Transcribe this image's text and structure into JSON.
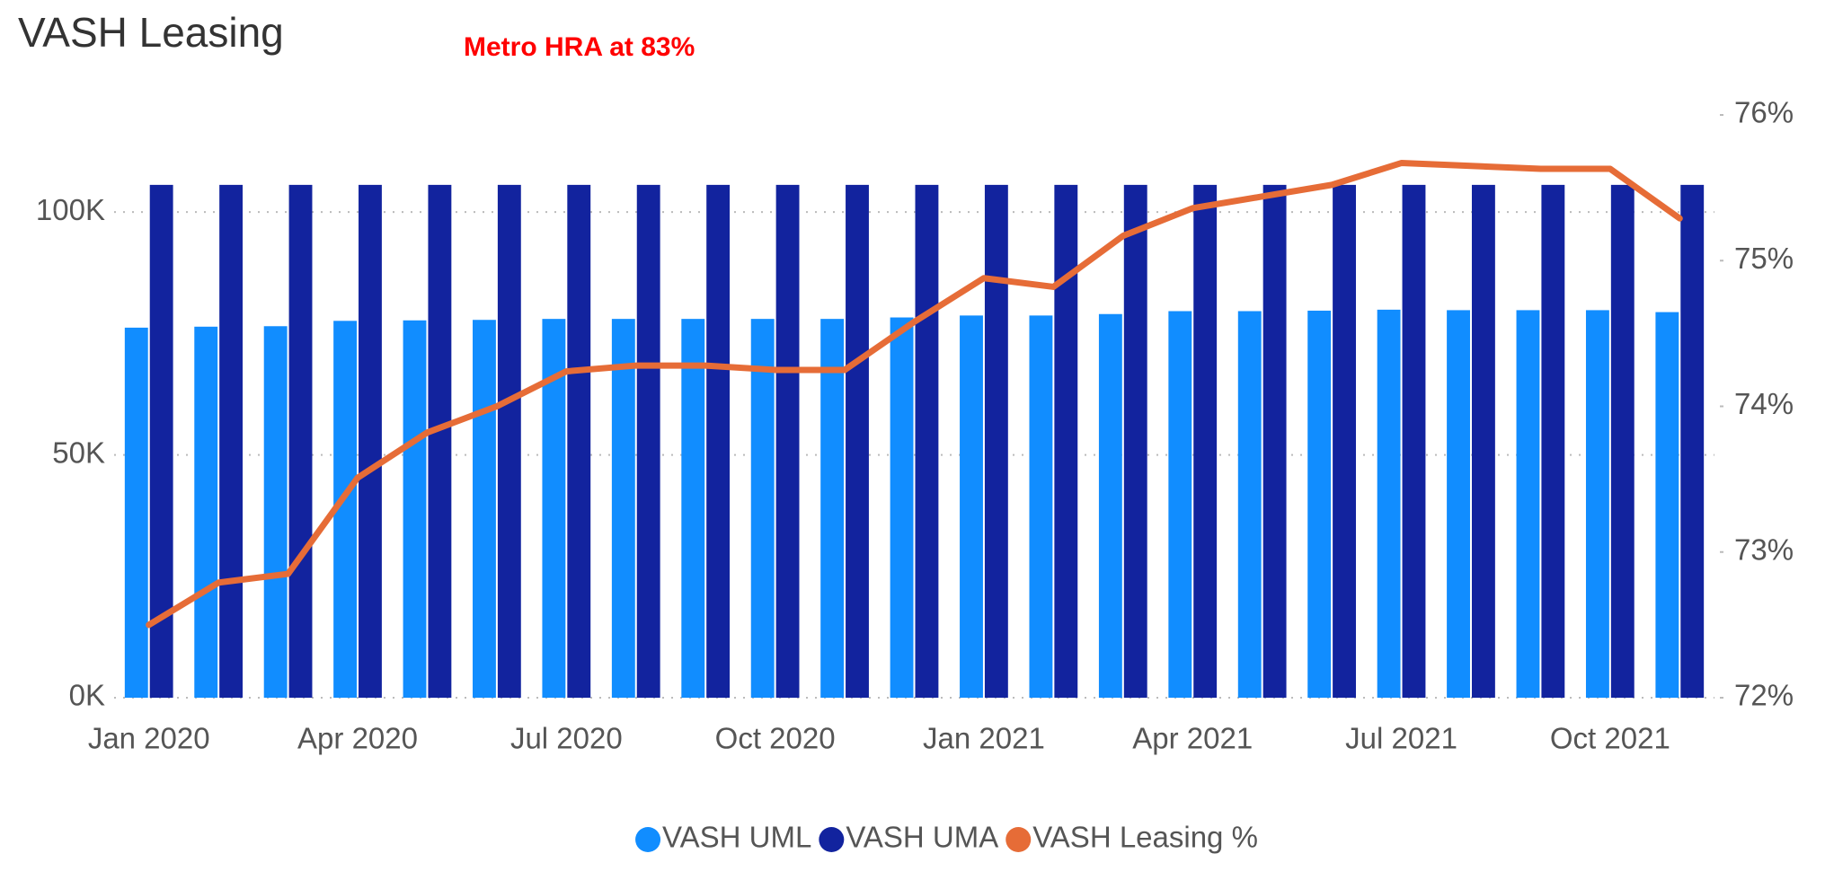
{
  "chart_data": {
    "type": "bar",
    "title": "VASH Leasing",
    "annotation": "Metro HRA at 83%",
    "categories": [
      "Jan 2020",
      null,
      null,
      "Apr 2020",
      null,
      null,
      "Jul 2020",
      null,
      null,
      "Oct 2020",
      null,
      null,
      "Jan 2021",
      null,
      null,
      "Apr 2021",
      null,
      null,
      "Jul 2021",
      null,
      null,
      "Oct 2021",
      null
    ],
    "series": [
      {
        "name": "VASH UML",
        "color": "#118dff",
        "type": "bar",
        "values": [
          76200,
          76400,
          76500,
          77600,
          77700,
          77800,
          78000,
          78000,
          78000,
          78000,
          78000,
          78300,
          78700,
          78700,
          79000,
          79600,
          79600,
          79700,
          79900,
          79800,
          79800,
          79800,
          79400
        ]
      },
      {
        "name": "VASH UMA",
        "color": "#12239e",
        "type": "bar",
        "values": [
          105600,
          105600,
          105600,
          105600,
          105600,
          105600,
          105600,
          105600,
          105600,
          105600,
          105600,
          105600,
          105600,
          105600,
          105600,
          105600,
          105600,
          105600,
          105600,
          105600,
          105600,
          105600,
          105600
        ]
      },
      {
        "name": "VASH Leasing %",
        "color": "#e66c37",
        "type": "line",
        "axis": "y2",
        "values": [
          72.5,
          72.79,
          72.85,
          73.51,
          73.82,
          74.0,
          74.24,
          74.28,
          74.28,
          74.25,
          74.25,
          74.58,
          74.88,
          74.82,
          75.17,
          75.36,
          75.44,
          75.52,
          75.67,
          75.65,
          75.63,
          75.63,
          75.29
        ]
      }
    ],
    "ylim": [
      0,
      120000
    ],
    "yticks": [
      {
        "value": 0,
        "label": "0K"
      },
      {
        "value": 50000,
        "label": "50K"
      },
      {
        "value": 100000,
        "label": "100K"
      }
    ],
    "y2lim": [
      72,
      76
    ],
    "y2ticks": [
      {
        "value": 72,
        "label": "72%"
      },
      {
        "value": 73,
        "label": "73%"
      },
      {
        "value": 74,
        "label": "74%"
      },
      {
        "value": 75,
        "label": "75%"
      },
      {
        "value": 76,
        "label": "76%"
      }
    ],
    "grid": true,
    "legend": "bottom"
  }
}
